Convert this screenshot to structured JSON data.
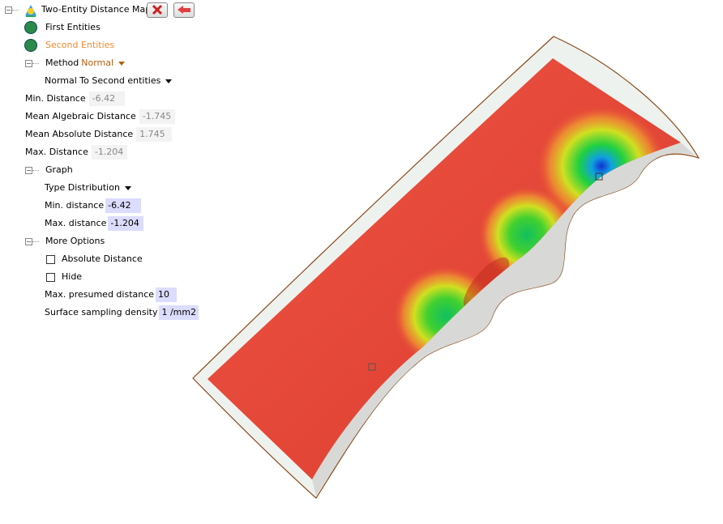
{
  "tree": {
    "title": "Two-Entity Distance Map",
    "first_entities": "First Entities",
    "second_entities": "Second Entities",
    "method": {
      "label": "Method",
      "value": "Normal"
    },
    "normal_to": {
      "label": "Normal To",
      "value": "Second entities"
    },
    "min_distance": {
      "label": "Min. Distance",
      "value": "-6.42"
    },
    "mean_algebraic_distance": {
      "label": "Mean Algebraic Distance",
      "value": "-1.745"
    },
    "mean_absolute_distance": {
      "label": "Mean Absolute Distance",
      "value": "1.745"
    },
    "max_distance": {
      "label": "Max. Distance",
      "value": "-1.204"
    },
    "graph": {
      "label": "Graph",
      "type": {
        "label": "Type",
        "value": "Distribution"
      },
      "min_distance": {
        "label": "Min. distance",
        "value": "-6.42"
      },
      "max_distance": {
        "label": "Max. distance",
        "value": "-1.204"
      }
    },
    "more_options": {
      "label": "More Options",
      "absolute_distance": "Absolute Distance",
      "hide": "Hide",
      "max_presumed_distance": {
        "label": "Max. presumed distance",
        "value": "10"
      },
      "surface_sampling_density": {
        "label": "Surface sampling density",
        "value": "1 /mm2"
      }
    }
  }
}
